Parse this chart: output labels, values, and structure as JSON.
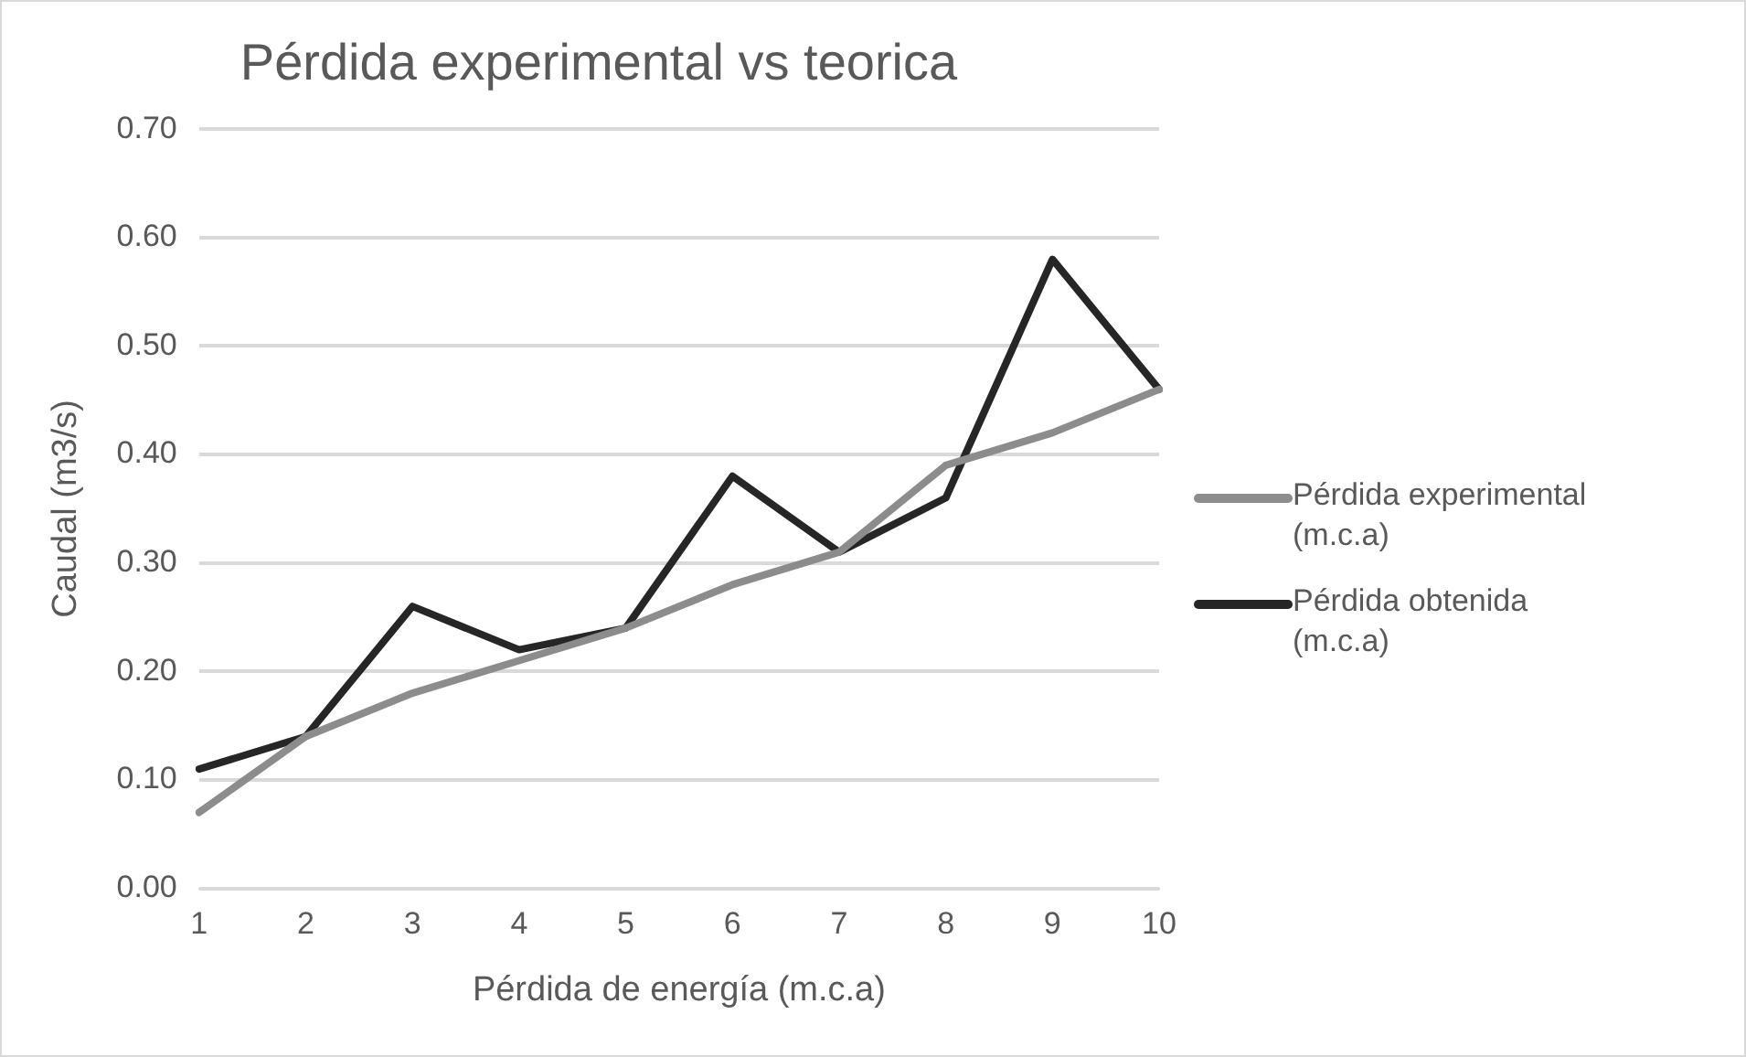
{
  "chart_data": {
    "type": "line",
    "title": "Pérdida experimental vs teorica",
    "xlabel": "Pérdida de energía (m.c.a)",
    "ylabel": "Caudal (m3/s)",
    "categories": [
      "1",
      "2",
      "3",
      "4",
      "5",
      "6",
      "7",
      "8",
      "9",
      "10"
    ],
    "series": [
      {
        "name": "Pérdida experimental (m.c.a)",
        "color": "#8c8c8c",
        "values": [
          0.07,
          0.14,
          0.18,
          0.21,
          0.24,
          0.28,
          0.31,
          0.39,
          0.42,
          0.46
        ]
      },
      {
        "name": "Pérdida obtenida (m.c.a)",
        "color": "#262626",
        "values": [
          0.11,
          0.14,
          0.26,
          0.22,
          0.24,
          0.38,
          0.31,
          0.36,
          0.58,
          0.46
        ]
      }
    ],
    "ylim": [
      0,
      0.7
    ],
    "yticks": [
      {
        "value": 0,
        "label": "0.00"
      },
      {
        "value": 0.1,
        "label": "0.10"
      },
      {
        "value": 0.2,
        "label": "0.20"
      },
      {
        "value": 0.3,
        "label": "0.30"
      },
      {
        "value": 0.4,
        "label": "0.40"
      },
      {
        "value": 0.5,
        "label": "0.50"
      },
      {
        "value": 0.6,
        "label": "0.60"
      },
      {
        "value": 0.7,
        "label": "0.70"
      }
    ],
    "grid": "y",
    "legend": "right",
    "marker": "none",
    "line_style": "solid"
  }
}
